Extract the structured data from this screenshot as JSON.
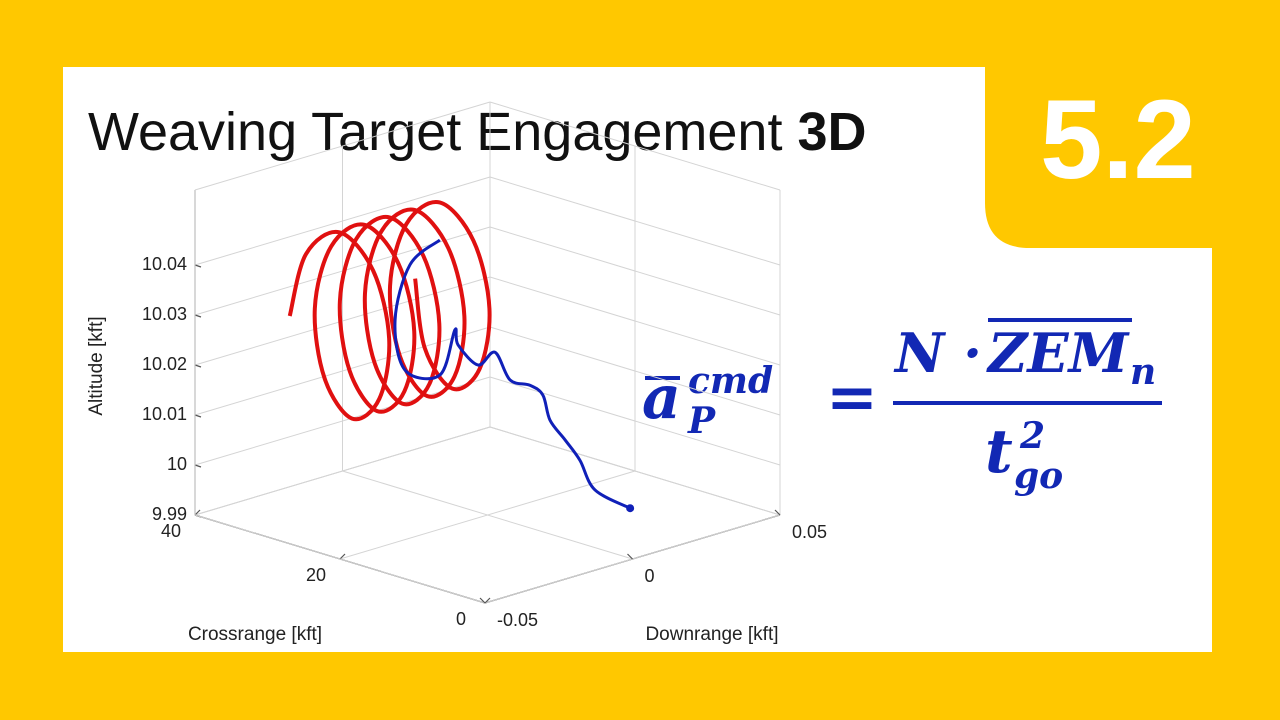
{
  "header": {
    "title": "Weaving Target Engagement",
    "title_emphasis": "3D",
    "badge": "5.2"
  },
  "equation": {
    "lhs_symbol": "a",
    "lhs_superscript": "cmd",
    "lhs_subscript": "P",
    "equals": "=",
    "numerator_prefix": "N ·",
    "numerator_symbol": "ZEM",
    "numerator_subscript": "n",
    "denominator_symbol": "t",
    "denominator_superscript": "2",
    "denominator_subscript": "go"
  },
  "chart_data": {
    "type": "line3d",
    "xlabel": "Crossrange [kft]",
    "ylabel": "Downrange [kft]",
    "zlabel": "Altitude [kft]",
    "xlim": [
      0,
      40
    ],
    "xticks": [
      0,
      20,
      40
    ],
    "ylim": [
      -0.05,
      0.05
    ],
    "yticks": [
      -0.05,
      0,
      0.05
    ],
    "zlim": [
      9.99,
      10.055
    ],
    "zticks": [
      9.99,
      10,
      10.01,
      10.02,
      10.03,
      10.04
    ],
    "grid": true,
    "series": [
      {
        "color": "#e01010",
        "x": [
          31,
          29.2,
          25,
          20.8,
          19,
          20.8,
          25,
          29.2,
          31,
          29.2,
          25,
          20.8,
          19,
          20.8,
          25,
          29.2,
          31,
          29.2,
          25,
          20.8,
          19,
          20.8,
          25,
          29.2,
          31,
          29.2,
          25,
          20.8,
          19,
          20.8,
          25,
          29.2,
          31,
          29.2,
          25,
          20.8,
          19,
          20.8,
          25,
          29.2,
          31
        ],
        "y": [
          -0.04,
          -0.0389,
          -0.0379,
          -0.0368,
          -0.0358,
          -0.0347,
          -0.0336,
          -0.0326,
          -0.0315,
          -0.0304,
          -0.0294,
          -0.0283,
          -0.0273,
          -0.0262,
          -0.0251,
          -0.0241,
          -0.023,
          -0.0219,
          -0.0209,
          -0.0198,
          -0.0188,
          -0.0177,
          -0.0166,
          -0.0156,
          -0.0145,
          -0.0134,
          -0.0124,
          -0.0113,
          -0.0103,
          -0.0092,
          -0.0081,
          -0.0071,
          -0.006,
          -0.0049,
          -0.0039,
          -0.0028,
          -0.0018,
          -0.0007,
          0.0004,
          0.0014,
          0.0025
        ],
        "z": [
          10.032,
          10.045,
          10.051,
          10.045,
          10.032,
          10.019,
          10.013,
          10.019,
          10.032,
          10.045,
          10.051,
          10.045,
          10.032,
          10.019,
          10.013,
          10.019,
          10.032,
          10.045,
          10.051,
          10.045,
          10.032,
          10.019,
          10.013,
          10.019,
          10.032,
          10.045,
          10.051,
          10.045,
          10.032,
          10.019,
          10.013,
          10.019,
          10.032,
          10.045,
          10.051,
          10.045,
          10.032,
          10.019,
          10.013,
          10.019,
          10.032
        ]
      },
      {
        "color": "#1020b8",
        "start_marker": true,
        "x": [
          0,
          2,
          4,
          6,
          8,
          10,
          12,
          14,
          16,
          18,
          20,
          21,
          22,
          23,
          24,
          25,
          26
        ],
        "y": [
          -0.0008,
          -0.0078,
          -0.008,
          -0.0081,
          -0.0083,
          -0.0058,
          -0.0053,
          -0.0071,
          -0.0073,
          -0.0081,
          -0.01,
          -0.0086,
          -0.0112,
          -0.0206,
          -0.0215,
          -0.014,
          -0.0014
        ],
        "z": [
          10.0003,
          10.0043,
          10.0094,
          10.0126,
          10.0157,
          10.0194,
          10.0204,
          10.0209,
          10.0256,
          10.0223,
          10.0258,
          10.0281,
          10.0191,
          10.0213,
          10.031,
          10.0403,
          10.0426
        ]
      }
    ]
  }
}
